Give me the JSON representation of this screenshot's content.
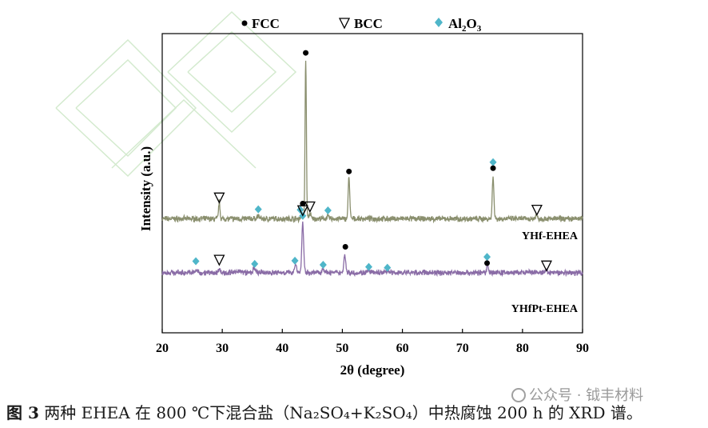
{
  "chart_data": {
    "type": "line",
    "title": "",
    "xlabel": "2θ (degree)",
    "ylabel": "Intensity (a.u.)",
    "xlim": [
      20,
      90
    ],
    "xticks": [
      20,
      30,
      40,
      50,
      60,
      70,
      80,
      90
    ],
    "yticks_shown": false,
    "grid": false,
    "legend": {
      "placement": "top",
      "entries": [
        {
          "symbol": "circle",
          "label": "FCC"
        },
        {
          "symbol": "triangle-down",
          "label": "BCC"
        },
        {
          "symbol": "diamond",
          "label": "Al2O3",
          "label_base": "Al",
          "sub1": "2",
          "mid": "O",
          "sub2": "3"
        }
      ]
    },
    "series": [
      {
        "label": "YHf-EHEA",
        "color": "#8a8f6e",
        "baseline": 0.78,
        "peaks": [
          {
            "x": 29.5,
            "h": 0.62,
            "w": 0.12
          },
          {
            "x": 36.0,
            "h": 0.1,
            "w": 0.2
          },
          {
            "x": 43.2,
            "h": 0.1,
            "w": 0.15
          },
          {
            "x": 43.9,
            "h": 5.9,
            "w": 0.11
          },
          {
            "x": 44.6,
            "h": 0.2,
            "w": 0.15
          },
          {
            "x": 47.6,
            "h": 0.08,
            "w": 0.2
          },
          {
            "x": 51.1,
            "h": 1.55,
            "w": 0.13
          },
          {
            "x": 75.1,
            "h": 1.6,
            "w": 0.13
          },
          {
            "x": 82.3,
            "h": 0.12,
            "w": 0.2
          }
        ],
        "markers": [
          {
            "type": "triangle-down",
            "x": 29.5,
            "y": 1.55
          },
          {
            "type": "diamond",
            "x": 36.0,
            "y": 1.13
          },
          {
            "type": "diamond",
            "x": 43.0,
            "y": 1.11
          },
          {
            "type": "triangle-down",
            "x": 44.6,
            "y": 1.22
          },
          {
            "type": "circle",
            "x": 43.9,
            "y": 6.88
          },
          {
            "type": "diamond",
            "x": 47.6,
            "y": 1.09
          },
          {
            "type": "circle",
            "x": 51.1,
            "y": 2.52
          },
          {
            "type": "diamond",
            "x": 75.1,
            "y": 2.86
          },
          {
            "type": "circle",
            "x": 75.1,
            "y": 2.64
          },
          {
            "type": "triangle-down",
            "x": 82.4,
            "y": 1.1
          }
        ]
      },
      {
        "label": "YHfPt-EHEA",
        "color": "#8a6ca6",
        "baseline": -1.2,
        "peaks": [
          {
            "x": 25.7,
            "h": 0.08,
            "w": 0.2
          },
          {
            "x": 29.5,
            "h": 0.18,
            "w": 0.12
          },
          {
            "x": 32.8,
            "h": 0.1,
            "w": 0.2
          },
          {
            "x": 35.3,
            "h": 0.14,
            "w": 0.2
          },
          {
            "x": 42.2,
            "h": 0.28,
            "w": 0.2
          },
          {
            "x": 43.4,
            "h": 1.85,
            "w": 0.15
          },
          {
            "x": 46.8,
            "h": 0.16,
            "w": 0.2
          },
          {
            "x": 50.4,
            "h": 0.68,
            "w": 0.15
          },
          {
            "x": 54.4,
            "h": 0.06,
            "w": 0.2
          },
          {
            "x": 57.6,
            "h": 0.08,
            "w": 0.2
          },
          {
            "x": 74.2,
            "h": 0.32,
            "w": 0.15
          },
          {
            "x": 83.9,
            "h": 0.06,
            "w": 0.2
          }
        ],
        "markers": [
          {
            "type": "diamond",
            "x": 25.6,
            "y": -0.78
          },
          {
            "type": "triangle-down",
            "x": 29.5,
            "y": -0.74
          },
          {
            "type": "diamond",
            "x": 35.4,
            "y": -0.88
          },
          {
            "type": "diamond",
            "x": 42.1,
            "y": -0.76
          },
          {
            "type": "diamond",
            "x": 43.4,
            "y": 0.89
          },
          {
            "type": "triangle-down",
            "x": 43.4,
            "y": 1.08
          },
          {
            "type": "circle",
            "x": 43.4,
            "y": 1.34
          },
          {
            "type": "diamond",
            "x": 46.8,
            "y": -0.91
          },
          {
            "type": "circle",
            "x": 50.5,
            "y": -0.25
          },
          {
            "type": "diamond",
            "x": 54.4,
            "y": -0.99
          },
          {
            "type": "diamond",
            "x": 57.5,
            "y": -1.02
          },
          {
            "type": "diamond",
            "x": 74.1,
            "y": -0.62
          },
          {
            "type": "circle",
            "x": 74.1,
            "y": -0.85
          },
          {
            "type": "triangle-down",
            "x": 84.0,
            "y": -0.95
          }
        ]
      }
    ]
  },
  "caption": {
    "label": "图 3",
    "text": " 两种 EHEA 在 800 ℃下混合盐（Na₂SO₄+K₂SO₄）中热腐蚀 200 h 的 XRD 谱。"
  },
  "watermark": {
    "text": "公众号 · 钺丰材料"
  },
  "colors": {
    "diamond": "#4fb6c9",
    "axis": "#000000"
  }
}
